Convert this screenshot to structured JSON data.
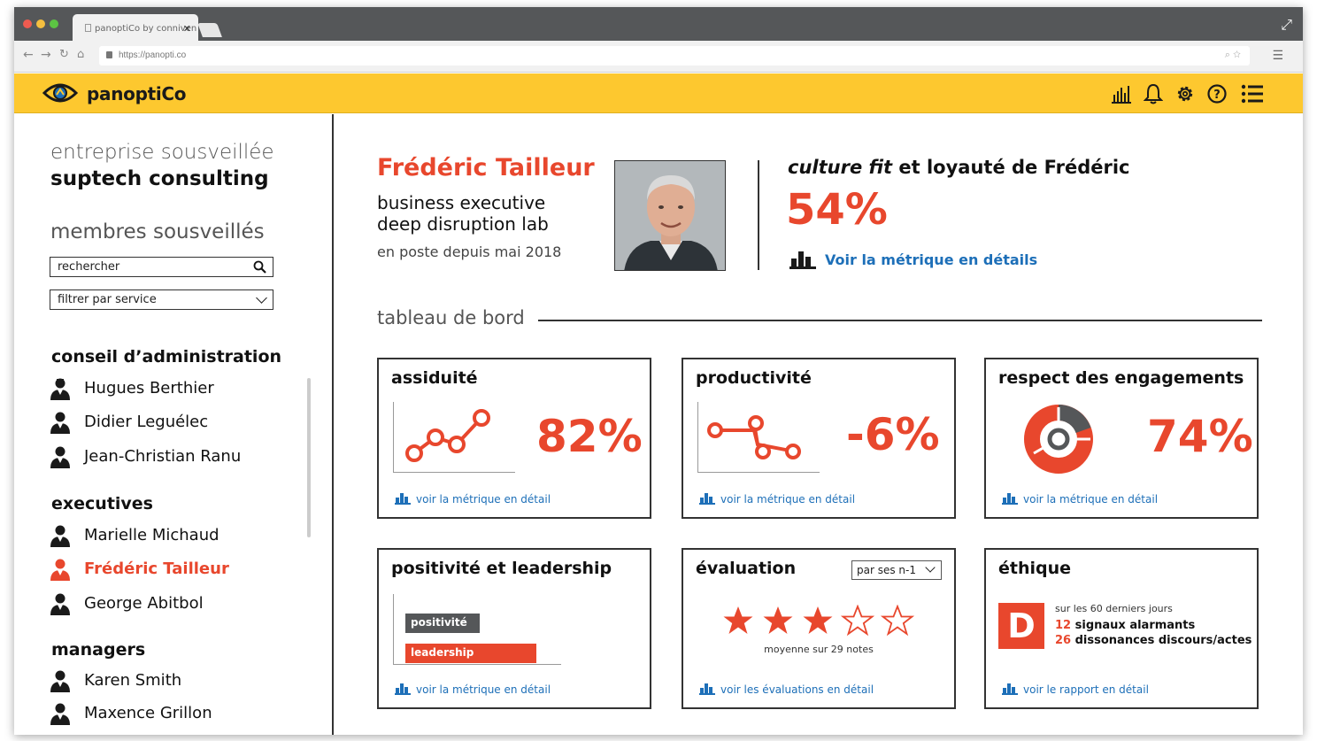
{
  "browser": {
    "tab_title": "panoptiCo by conniven",
    "url": "https://panopti.co"
  },
  "app": {
    "brand": "panoptiCo",
    "colors": {
      "brand_yellow": "#fdc82f",
      "accent_red": "#e8472d",
      "link_blue": "#1d6fb8"
    },
    "header_icons": [
      "bar-chart-icon",
      "bell-icon",
      "gear-icon",
      "help-icon",
      "list-menu-icon"
    ]
  },
  "sidebar": {
    "company_label": "entreprise sousveillée",
    "company_name": "suptech consulting",
    "members_title": "membres sousveillés",
    "search_value": "rechercher",
    "filter_value": "filtrer par service",
    "groups": [
      {
        "name": "conseil d’administration",
        "members": [
          "Hugues Berthier",
          "Didier Leguélec",
          "Jean-Christian Ranu"
        ]
      },
      {
        "name": "executives",
        "members": [
          "Marielle Michaud",
          "Frédéric Tailleur",
          "George Abitbol"
        ]
      },
      {
        "name": "managers",
        "members": [
          "Karen Smith",
          "Maxence Grillon"
        ]
      }
    ],
    "active_member": "Frédéric Tailleur"
  },
  "profile": {
    "name": "Frédéric Tailleur",
    "role_line1": "business executive",
    "role_line2": "deep disruption lab",
    "since": "en poste depuis mai 2018"
  },
  "culture_fit": {
    "title_italic": "culture fit",
    "title_rest": " et loyauté de Frédéric",
    "value": "54%",
    "link": "Voir la métrique en détails"
  },
  "dashboard": {
    "title": "tableau de bord",
    "cards": {
      "assiduite": {
        "title": "assiduité",
        "value": "82%",
        "link": "voir la métrique en détail"
      },
      "productivite": {
        "title": "productivité",
        "value": "-6%",
        "link": "voir la métrique en détail"
      },
      "engagements": {
        "title": "respect des engagements",
        "value": "74%",
        "link": "voir la métrique en détail"
      },
      "positivite": {
        "title": "positivité et leadership",
        "bar1": "positivité",
        "bar2": "leadership",
        "link": "voir la métrique en détail"
      },
      "evaluation": {
        "title": "évaluation",
        "select_value": "par ses n-1",
        "stars_filled": 3,
        "stars_total": 5,
        "subtitle": "moyenne sur 29 notes",
        "link": "voir les évaluations en détail"
      },
      "ethique": {
        "title": "éthique",
        "badge": "D",
        "line1": "sur les 60 derniers jours",
        "count1": "12",
        "text1": " signaux alarmants",
        "count2": "26",
        "text2": " dissonances discours/actes",
        "link": "voir le rapport en détail"
      }
    }
  }
}
